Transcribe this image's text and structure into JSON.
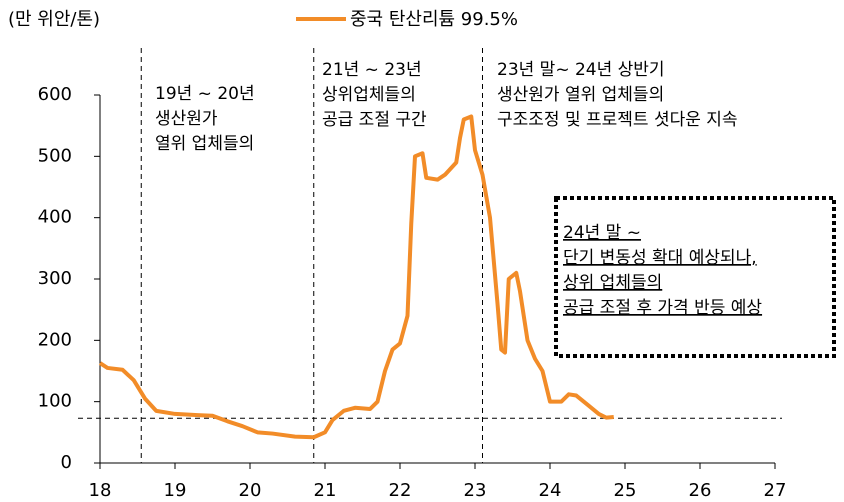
{
  "chart_data": {
    "type": "line",
    "y_axis_label": "(만 위안/톤)",
    "xlim": [
      18,
      27
    ],
    "xticks": [
      18,
      19,
      20,
      21,
      22,
      23,
      24,
      25,
      26,
      27
    ],
    "ylim": [
      0,
      600
    ],
    "yticks": [
      0,
      100,
      200,
      300,
      400,
      500,
      600
    ],
    "series": [
      {
        "name": "중국 탄산리튬 99.5%",
        "color": "#f28c28",
        "x": [
          18.0,
          18.1,
          18.3,
          18.45,
          18.6,
          18.75,
          19.0,
          19.3,
          19.5,
          19.7,
          19.9,
          20.1,
          20.3,
          20.6,
          20.85,
          21.0,
          21.1,
          21.25,
          21.4,
          21.6,
          21.7,
          21.8,
          21.9,
          22.0,
          22.1,
          22.15,
          22.2,
          22.3,
          22.35,
          22.5,
          22.6,
          22.75,
          22.8,
          22.85,
          22.95,
          23.0,
          23.1,
          23.2,
          23.3,
          23.35,
          23.4,
          23.45,
          23.55,
          23.6,
          23.7,
          23.8,
          23.9,
          24.0,
          24.15,
          24.25,
          24.35,
          24.5,
          24.65,
          24.75,
          24.85
        ],
        "values": [
          163,
          155,
          152,
          135,
          105,
          85,
          80,
          78,
          77,
          68,
          60,
          50,
          48,
          43,
          42,
          50,
          70,
          85,
          90,
          88,
          100,
          150,
          185,
          195,
          240,
          390,
          500,
          505,
          465,
          462,
          470,
          490,
          530,
          560,
          565,
          510,
          470,
          400,
          260,
          185,
          180,
          300,
          310,
          280,
          200,
          170,
          150,
          100,
          100,
          112,
          110,
          95,
          80,
          74,
          75
        ]
      }
    ],
    "reference_lines": {
      "x": [
        18.55,
        20.85,
        23.1
      ],
      "y": [
        73
      ]
    },
    "annotations": [
      [
        "19년 ~ 20년",
        "생산원가",
        "열위 업체들의"
      ],
      [
        "21년 ~ 23년",
        "상위업체들의",
        "공급 조절 구간"
      ],
      [
        "23년 말~ 24년 상반기",
        "생산원가 열위 업체들의",
        "구조조정 및 프로젝트 셧다운 지속"
      ],
      [
        "24년 말 ~",
        "단기 변동성 확대 예상되나,",
        "상위 업체들의",
        "공급 조절 후 가격 반등 예상"
      ]
    ]
  }
}
